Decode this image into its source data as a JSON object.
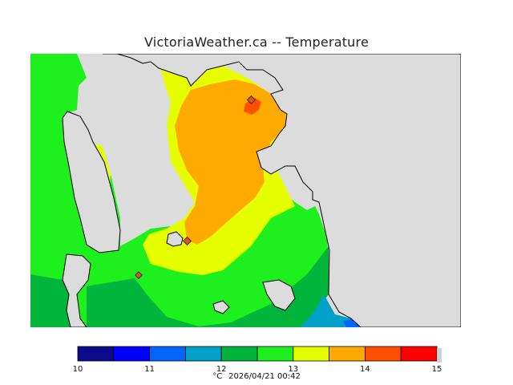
{
  "title": "VictoriaWeather.ca -- Temperature",
  "colors": {
    "land": "#dcdcdc",
    "coastline": "#000000",
    "stations": "#d05a1a"
  },
  "legend": {
    "unit": "°C",
    "timestamp": "2026/04/21 00:42",
    "ticks": [
      "10",
      "11",
      "12",
      "13",
      "14",
      "15"
    ],
    "bins": [
      {
        "from": 10.0,
        "to": 10.5,
        "color": "#0a0a8c"
      },
      {
        "from": 10.5,
        "to": 11.0,
        "color": "#0000ff"
      },
      {
        "from": 11.0,
        "to": 11.5,
        "color": "#0066ff"
      },
      {
        "from": 11.5,
        "to": 12.0,
        "color": "#00a0c8"
      },
      {
        "from": 12.0,
        "to": 12.5,
        "color": "#00b43c"
      },
      {
        "from": 12.5,
        "to": 13.0,
        "color": "#1ef01e"
      },
      {
        "from": 13.0,
        "to": 13.5,
        "color": "#e6ff00"
      },
      {
        "from": 13.5,
        "to": 14.0,
        "color": "#ffaa00"
      },
      {
        "from": 14.0,
        "to": 14.5,
        "color": "#ff5000"
      },
      {
        "from": 14.5,
        "to": 15.0,
        "color": "#ff0000"
      }
    ]
  }
}
